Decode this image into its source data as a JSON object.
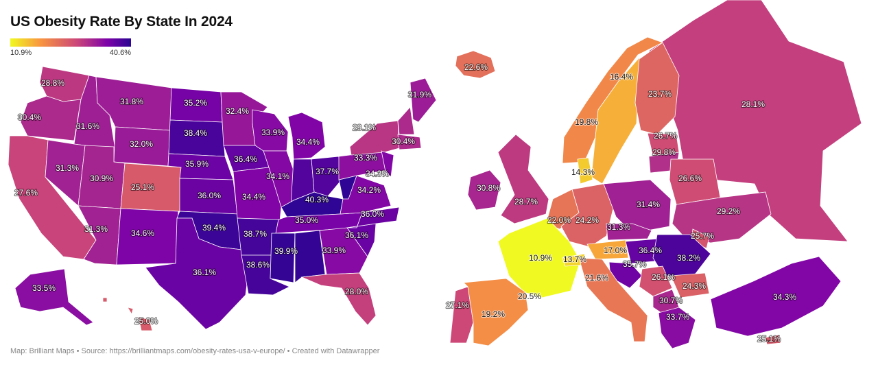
{
  "title": "US Obesity Rate By State In 2024",
  "legend": {
    "min_label": "10.9%",
    "max_label": "40.6%",
    "min": 10.9,
    "max": 40.6
  },
  "footer": "Map: Brilliant Maps • Source: https://brilliantmaps.com/obesity-rates-usa-v-europe/ • Created with Datawrapper",
  "us_labels": [
    {
      "id": "washington",
      "text": "28.8%",
      "value": 28.8
    },
    {
      "id": "oregon",
      "text": "30.4%",
      "value": 30.4
    },
    {
      "id": "idaho",
      "text": "31.6%",
      "value": 31.6
    },
    {
      "id": "montana",
      "text": "31.8%",
      "value": 31.8
    },
    {
      "id": "north-dakota",
      "text": "35.2%",
      "value": 35.2
    },
    {
      "id": "minnesota",
      "text": "32.4%",
      "value": 32.4
    },
    {
      "id": "wisconsin",
      "text": "33.9%",
      "value": 33.9
    },
    {
      "id": "michigan",
      "text": "34.4%",
      "value": 34.4
    },
    {
      "id": "new-york",
      "text": "29.1%",
      "value": 29.1
    },
    {
      "id": "maine",
      "text": "31.9%",
      "value": 31.9
    },
    {
      "id": "massachusetts",
      "text": "30.4%",
      "value": 30.4
    },
    {
      "id": "south-dakota",
      "text": "38.4%",
      "value": 38.4
    },
    {
      "id": "wyoming",
      "text": "32.0%",
      "value": 32.0
    },
    {
      "id": "iowa",
      "text": "36.4%",
      "value": 36.4
    },
    {
      "id": "nebraska",
      "text": "35.9%",
      "value": 35.9
    },
    {
      "id": "illinois",
      "text": "34.1%",
      "value": 34.1
    },
    {
      "id": "indiana",
      "text": "37.7%",
      "value": 37.7
    },
    {
      "id": "pennsylvania",
      "text": "33.3%",
      "value": 33.3
    },
    {
      "id": "new-jersey",
      "text": "34.3%",
      "value": 34.3
    },
    {
      "id": "virginia",
      "text": "34.2%",
      "value": 34.2
    },
    {
      "id": "nevada",
      "text": "31.3%",
      "value": 31.3
    },
    {
      "id": "utah",
      "text": "30.9%",
      "value": 30.9
    },
    {
      "id": "colorado",
      "text": "25.1%",
      "value": 25.1
    },
    {
      "id": "california",
      "text": "27.6%",
      "value": 27.6
    },
    {
      "id": "kansas",
      "text": "36.0%",
      "value": 36.0
    },
    {
      "id": "missouri",
      "text": "34.4%",
      "value": 34.4
    },
    {
      "id": "kentucky",
      "text": "40.3%",
      "value": 40.3
    },
    {
      "id": "arizona",
      "text": "31.3%",
      "value": 31.3
    },
    {
      "id": "new-mexico",
      "text": "34.6%",
      "value": 34.6
    },
    {
      "id": "oklahoma",
      "text": "39.4%",
      "value": 39.4
    },
    {
      "id": "arkansas",
      "text": "38.7%",
      "value": 38.7
    },
    {
      "id": "tennessee",
      "text": "35.0%",
      "value": 35.0
    },
    {
      "id": "north-carolina",
      "text": "36.0%",
      "value": 36.0
    },
    {
      "id": "south-carolina",
      "text": "36.1%",
      "value": 36.1
    },
    {
      "id": "mississippi",
      "text": "39.9%",
      "value": 39.9
    },
    {
      "id": "georgia",
      "text": "33.9%",
      "value": 33.9
    },
    {
      "id": "louisiana",
      "text": "38.6%",
      "value": 38.6
    },
    {
      "id": "texas",
      "text": "36.1%",
      "value": 36.1
    },
    {
      "id": "florida",
      "text": "28.0%",
      "value": 28.0
    },
    {
      "id": "alaska",
      "text": "33.5%",
      "value": 33.5
    },
    {
      "id": "hawaii",
      "text": "25.0%",
      "value": 25.0
    }
  ],
  "europe_labels": [
    {
      "id": "iceland",
      "text": "22.6%",
      "value": 22.6
    },
    {
      "id": "sweden",
      "text": "16.4%",
      "value": 16.4
    },
    {
      "id": "finland",
      "text": "23.7%",
      "value": 23.7
    },
    {
      "id": "russia",
      "text": "28.1%",
      "value": 28.1
    },
    {
      "id": "norway",
      "text": "19.8%",
      "value": 19.8
    },
    {
      "id": "latvia",
      "text": "26.7%",
      "value": 26.7
    },
    {
      "id": "lithuania",
      "text": "29.8%",
      "value": 29.8
    },
    {
      "id": "denmark",
      "text": "14.3%",
      "value": 14.3
    },
    {
      "id": "belarus",
      "text": "26.6%",
      "value": 26.6
    },
    {
      "id": "ireland",
      "text": "30.8%",
      "value": 30.8
    },
    {
      "id": "united-kingdom",
      "text": "28.7%",
      "value": 28.7
    },
    {
      "id": "poland",
      "text": "31.4%",
      "value": 31.4
    },
    {
      "id": "ukraine",
      "text": "29.2%",
      "value": 29.2
    },
    {
      "id": "netherlands",
      "text": "22.0%",
      "value": 22.0
    },
    {
      "id": "germany",
      "text": "24.2%",
      "value": 24.2
    },
    {
      "id": "czechia",
      "text": "31.3%",
      "value": 31.3
    },
    {
      "id": "moldova",
      "text": "25.7%",
      "value": 25.7
    },
    {
      "id": "france",
      "text": "10.9%",
      "value": 10.9
    },
    {
      "id": "switzerland",
      "text": "13.7%",
      "value": 13.7
    },
    {
      "id": "austria",
      "text": "17.0%",
      "value": 17.0
    },
    {
      "id": "hungary",
      "text": "36.4%",
      "value": 36.4
    },
    {
      "id": "romania",
      "text": "38.2%",
      "value": 38.2
    },
    {
      "id": "croatia",
      "text": "35.7%",
      "value": 35.7
    },
    {
      "id": "italy",
      "text": "21.6%",
      "value": 21.6
    },
    {
      "id": "serbia",
      "text": "26.1%",
      "value": 26.1
    },
    {
      "id": "bulgaria",
      "text": "24.3%",
      "value": 24.3
    },
    {
      "id": "portugal",
      "text": "27.1%",
      "value": 27.1
    },
    {
      "id": "spain",
      "text": "19.2%",
      "value": 19.2
    },
    {
      "id": "andorra-region",
      "text": "20.5%",
      "value": 20.5
    },
    {
      "id": "north-macedonia",
      "text": "30.7%",
      "value": 30.7
    },
    {
      "id": "greece",
      "text": "33.7%",
      "value": 33.7
    },
    {
      "id": "turkey",
      "text": "34.3%",
      "value": 34.3
    },
    {
      "id": "cyprus",
      "text": "25.1%",
      "value": 25.1
    }
  ]
}
